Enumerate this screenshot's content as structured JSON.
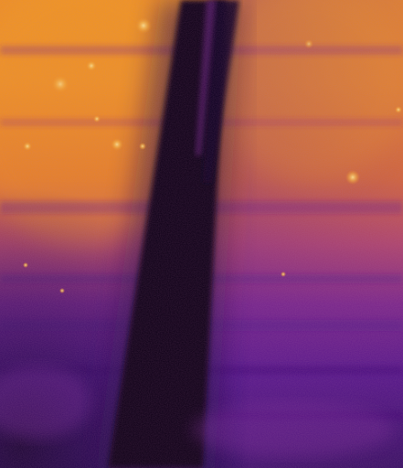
{
  "image": {
    "kind": "false-color thermal image",
    "colormap": "inferno",
    "palette": {
      "hot": "#f6a21c",
      "warm": "#e2721f",
      "mid": "#b2406b",
      "cool": "#6a1f8e",
      "cold": "#360d63",
      "darkest": "#0a0318"
    },
    "subjects": [
      "vertical-dark-pole",
      "horizontal-banded-surface",
      "hot-speckle-spots"
    ]
  }
}
